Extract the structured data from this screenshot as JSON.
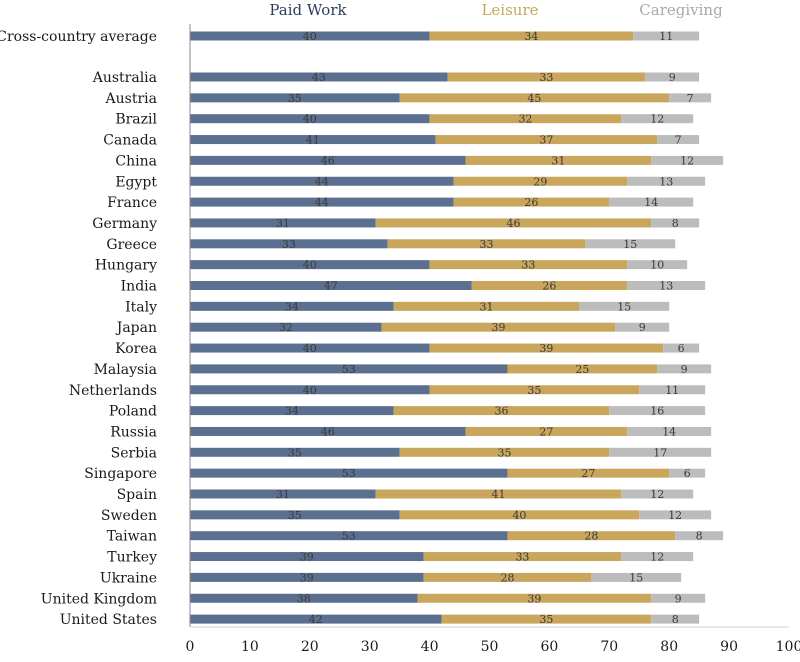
{
  "chart_data": {
    "type": "bar",
    "orientation": "horizontal",
    "stacked": true,
    "title": "",
    "xlabel": "",
    "ylabel": "",
    "xlim": [
      0,
      100
    ],
    "xticks": [
      "0",
      "10",
      "20",
      "30",
      "40",
      "50",
      "60",
      "70",
      "80",
      "90",
      "100"
    ],
    "legend_position": "top",
    "grid": false,
    "categories": [
      "Cross-country average",
      "Australia",
      "Austria",
      "Brazil",
      "Canada",
      "China",
      "Egypt",
      "France",
      "Germany",
      "Greece",
      "Hungary",
      "India",
      "Italy",
      "Japan",
      "Korea",
      "Malaysia",
      "Netherlands",
      "Poland",
      "Russia",
      "Serbia",
      "Singapore",
      "Spain",
      "Sweden",
      "Taiwan",
      "Turkey",
      "Ukraine",
      "United Kingdom",
      "United States"
    ],
    "series": [
      {
        "name": "Paid Work",
        "color": "#5b7090",
        "values": [
          40,
          43,
          35,
          40,
          41,
          46,
          44,
          44,
          31,
          33,
          40,
          47,
          34,
          32,
          40,
          53,
          40,
          34,
          46,
          35,
          53,
          31,
          35,
          53,
          39,
          39,
          38,
          42
        ]
      },
      {
        "name": "Leisure",
        "color": "#c9a65c",
        "values": [
          34,
          33,
          45,
          32,
          37,
          31,
          29,
          26,
          46,
          33,
          33,
          26,
          31,
          39,
          39,
          25,
          35,
          36,
          27,
          35,
          27,
          41,
          40,
          28,
          33,
          28,
          39,
          35
        ]
      },
      {
        "name": "Caregiving",
        "color": "#bcbcbc",
        "values": [
          11,
          9,
          7,
          12,
          7,
          12,
          13,
          14,
          8,
          15,
          10,
          13,
          15,
          9,
          6,
          9,
          11,
          16,
          14,
          17,
          6,
          12,
          12,
          8,
          12,
          15,
          9,
          8
        ]
      }
    ]
  }
}
